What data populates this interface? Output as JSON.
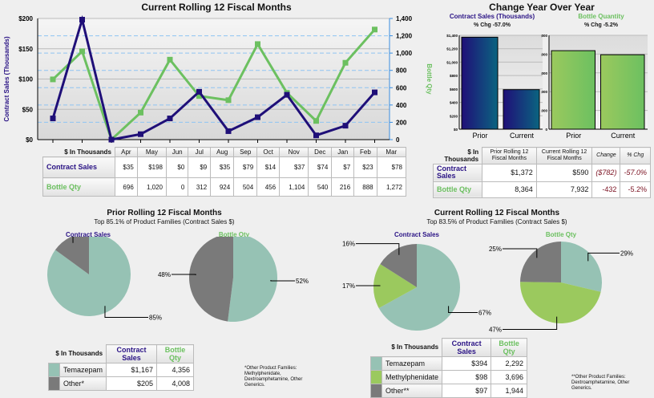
{
  "colors": {
    "contract": "#1f0f78",
    "bottle": "#6cc060",
    "temazepam": "#96c2b4",
    "methylphenidate": "#9bc95e",
    "other": "#7a7a7a"
  },
  "chart_data": [
    {
      "type": "line",
      "title": "Current Rolling 12 Fiscal Months",
      "ylabel": "Contract Sales (Thousands)",
      "y2label": "Bottle Qty",
      "categories": [
        "Apr",
        "May",
        "Jun",
        "Jul",
        "Aug",
        "Sep",
        "Oct",
        "Nov",
        "Dec",
        "Jan",
        "Feb",
        "Mar"
      ],
      "ylim": [
        0,
        200
      ],
      "yticks": [
        "$0",
        "$50",
        "$100",
        "$150",
        "$200"
      ],
      "y2lim": [
        0,
        1400
      ],
      "y2ticks": [
        "0",
        "200",
        "400",
        "600",
        "800",
        "1,000",
        "1,200",
        "1,400"
      ],
      "series": [
        {
          "name": "Contract Sales",
          "axis": "left",
          "values": [
            35,
            198,
            0,
            9,
            35,
            79,
            14,
            37,
            74,
            7,
            23,
            78
          ]
        },
        {
          "name": "Bottle Qty",
          "axis": "right",
          "values": [
            696,
            1020,
            0,
            312,
            924,
            504,
            456,
            1104,
            540,
            216,
            888,
            1272
          ]
        }
      ]
    },
    {
      "type": "bar",
      "title": "Contract Sales (Thousands)",
      "subtitle": "% Chg -57.0%",
      "categories": [
        "Prior",
        "Current"
      ],
      "values": [
        1372,
        590
      ],
      "ylim": [
        0,
        1400
      ],
      "yticks": [
        "$0",
        "$200",
        "$400",
        "$600",
        "$800",
        "$1,000",
        "$1,200",
        "$1,400"
      ]
    },
    {
      "type": "bar",
      "title": "Bottle Quantity",
      "subtitle": "% Chg -5.2%",
      "categories": [
        "Prior",
        "Current"
      ],
      "values": [
        8364,
        7932
      ],
      "ylim": [
        0,
        10000
      ],
      "yticks": [
        "0",
        "2,000",
        "4,000",
        "6,000",
        "8,000",
        "10,000"
      ]
    },
    {
      "type": "pie",
      "title": "Contract Sales",
      "slices": [
        {
          "label": "Temazepam",
          "value": 85
        },
        {
          "label": "Other",
          "value": 15
        }
      ]
    },
    {
      "type": "pie",
      "title": "Bottle Qty",
      "slices": [
        {
          "label": "Temazepam",
          "value": 52
        },
        {
          "label": "Other",
          "value": 48
        }
      ]
    },
    {
      "type": "pie",
      "title": "Contract Sales",
      "slices": [
        {
          "label": "Temazepam",
          "value": 67
        },
        {
          "label": "Methylphenidate",
          "value": 17
        },
        {
          "label": "Other",
          "value": 16
        }
      ]
    },
    {
      "type": "pie",
      "title": "Bottle Qty",
      "slices": [
        {
          "label": "Temazepam",
          "value": 29
        },
        {
          "label": "Methylphenidate",
          "value": 47
        },
        {
          "label": "Other",
          "value": 25
        }
      ]
    }
  ],
  "monthly_table": {
    "corner": "$ In Thousands",
    "rows": [
      {
        "label": "Contract Sales",
        "values": [
          "$35",
          "$198",
          "$0",
          "$9",
          "$35",
          "$79",
          "$14",
          "$37",
          "$74",
          "$7",
          "$23",
          "$78"
        ]
      },
      {
        "label": "Bottle Qty",
        "values": [
          "696",
          "1,020",
          "0",
          "312",
          "924",
          "504",
          "456",
          "1,104",
          "540",
          "216",
          "888",
          "1,272"
        ]
      }
    ]
  },
  "yoy": {
    "title": "Change Year Over Year",
    "table": {
      "corner": "$ In Thousands",
      "headers": [
        "Prior Rolling 12 Fiscal Months",
        "Current Rolling 12 Fiscal Months",
        "Change",
        "% Chg"
      ],
      "rows": [
        {
          "label": "Contract Sales",
          "values": [
            "$1,372",
            "$590",
            "($782)",
            "-57.0%"
          ]
        },
        {
          "label": "Bottle Qty",
          "values": [
            "8,364",
            "7,932",
            "-432",
            "-5.2%"
          ]
        }
      ]
    }
  },
  "prior": {
    "title": "Prior Rolling 12 Fiscal Months",
    "subtitle": "Top 85.1% of Product Families (Contract Sales $)",
    "table": {
      "corner": "$ In Thousands",
      "headers": [
        "Contract Sales",
        "Bottle Qty"
      ],
      "rows": [
        {
          "label": "Temazepam",
          "values": [
            "$1,167",
            "4,356"
          ]
        },
        {
          "label": "Other*",
          "values": [
            "$205",
            "4,008"
          ]
        }
      ]
    },
    "footnote": "*Other Product Families: Methylphenidate, Dextroamphetamine, Other Generics."
  },
  "current": {
    "title": "Current Rolling 12 Fiscal Months",
    "subtitle": "Top 83.5% of Product Families (Contract Sales $)",
    "table": {
      "corner": "$ In Thousands",
      "headers": [
        "Contract Sales",
        "Bottle Qty"
      ],
      "rows": [
        {
          "label": "Temazepam",
          "values": [
            "$394",
            "2,292"
          ]
        },
        {
          "label": "Methylphenidate",
          "values": [
            "$98",
            "3,696"
          ]
        },
        {
          "label": "Other**",
          "values": [
            "$97",
            "1,944"
          ]
        }
      ]
    },
    "footnote": "**Other Product Families: Dextroamphetamine, Other Generics."
  }
}
